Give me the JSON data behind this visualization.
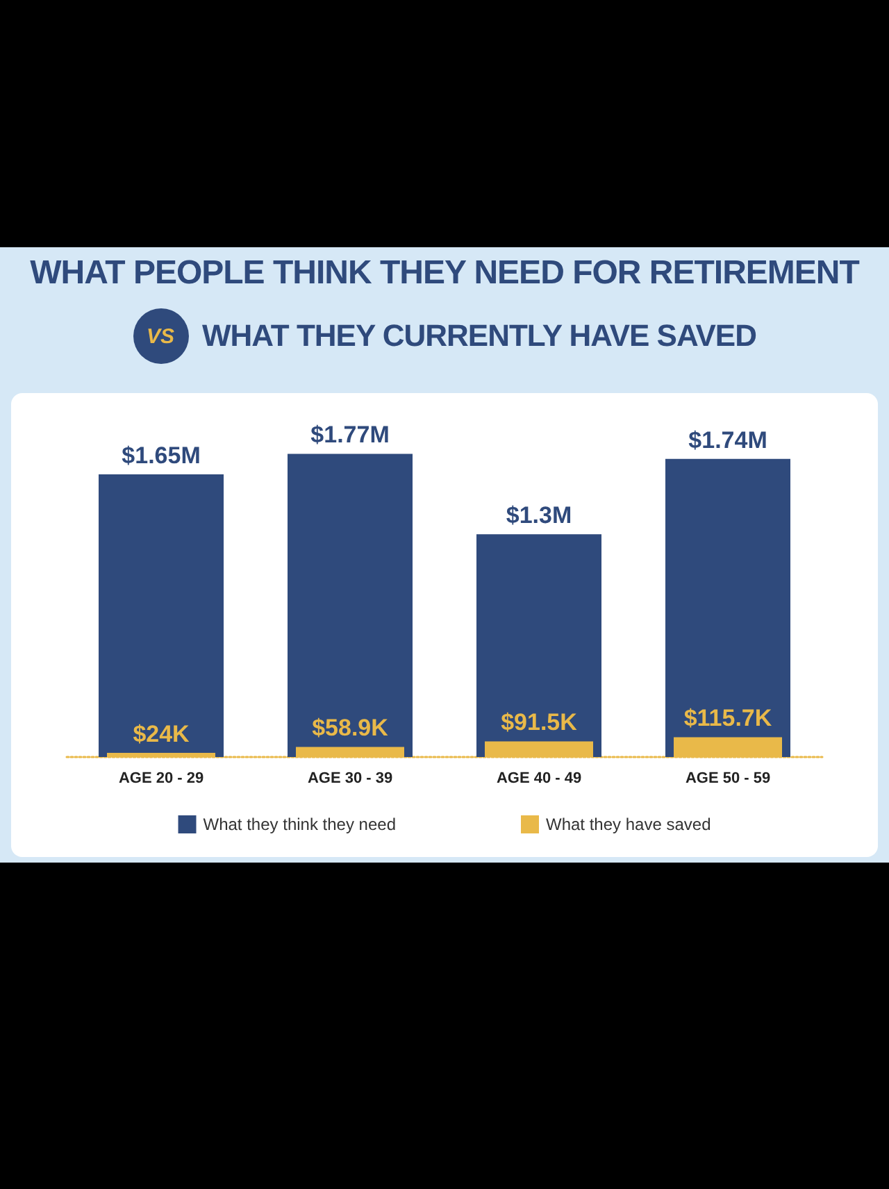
{
  "chart_data": {
    "type": "bar",
    "title": "WHAT PEOPLE THINK THEY NEED FOR RETIREMENT",
    "subtitle": "WHAT THEY CURRENTLY HAVE SAVED",
    "annotations": [
      "VS"
    ],
    "categories": [
      "AGE 20 - 29",
      "AGE 30 - 39",
      "AGE 40 - 49",
      "AGE 50 - 59"
    ],
    "series": [
      {
        "name": "What they think they need",
        "color": "#2f4a7c",
        "values": [
          1650000,
          1770000,
          1300000,
          1740000
        ],
        "value_labels": [
          "$1.65M",
          "$1.77M",
          "$1.3M",
          "$1.74M"
        ]
      },
      {
        "name": "What they have saved",
        "color": "#e9b949",
        "values": [
          24000,
          58900,
          91500,
          115700
        ],
        "value_labels": [
          "$24K",
          "$58.9K",
          "$91.5K",
          "$115.7K"
        ]
      }
    ],
    "tick_labels": "x",
    "grid": false,
    "legend": "bottom"
  }
}
